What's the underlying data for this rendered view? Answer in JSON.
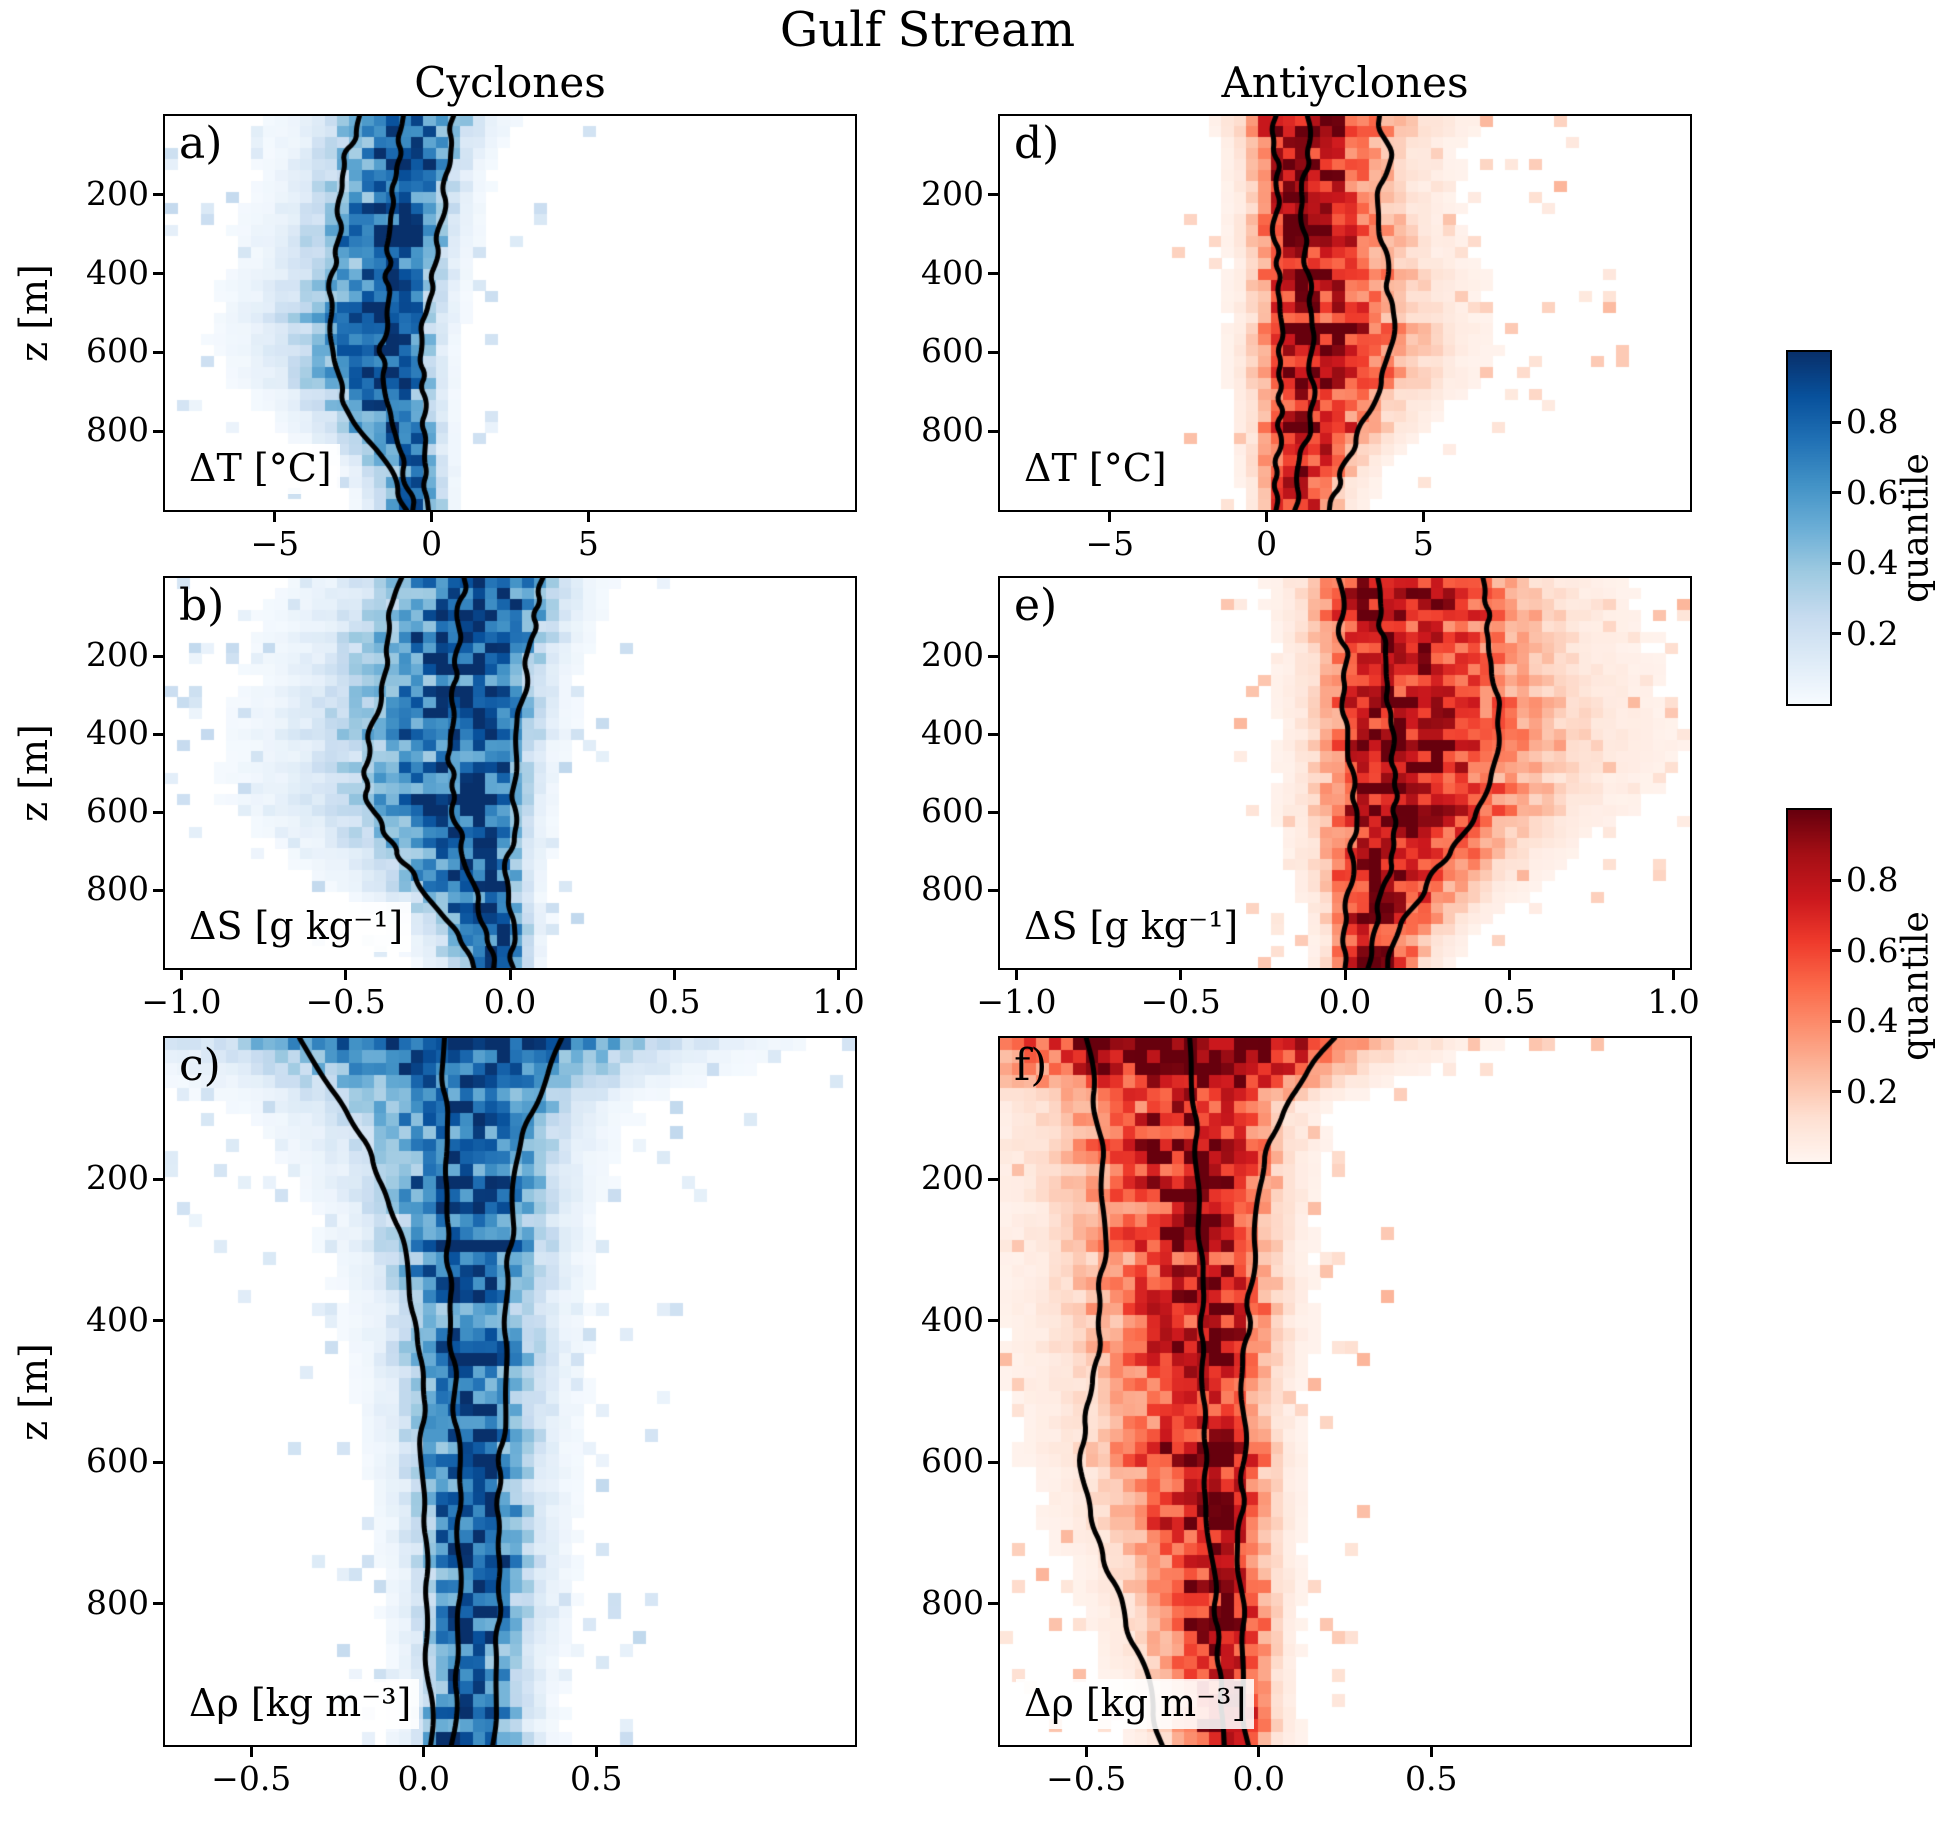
{
  "title": "Gulf Stream",
  "columns": [
    "Cyclones",
    "Antiyclones"
  ],
  "ylabel": "z [m]",
  "colorbars": [
    {
      "label": "quantile",
      "colormap": "blues",
      "ticks": [
        {
          "v": 0.8,
          "label": "0.8"
        },
        {
          "v": 0.6,
          "label": "0.6"
        },
        {
          "v": 0.4,
          "label": "0.4"
        },
        {
          "v": 0.2,
          "label": "0.2"
        }
      ]
    },
    {
      "label": "quantile",
      "colormap": "reds",
      "ticks": [
        {
          "v": 0.8,
          "label": "0.8"
        },
        {
          "v": 0.6,
          "label": "0.6"
        },
        {
          "v": 0.4,
          "label": "0.4"
        },
        {
          "v": 0.2,
          "label": "0.2"
        }
      ]
    }
  ],
  "chart_data": {
    "type": "heatmap",
    "ylim": [
      0,
      1000
    ],
    "yticks": [
      {
        "v": 200,
        "label": "200"
      },
      {
        "v": 400,
        "label": "400"
      },
      {
        "v": 600,
        "label": "600"
      },
      {
        "v": 800,
        "label": "800"
      }
    ],
    "depths": [
      0,
      100,
      200,
      300,
      400,
      500,
      600,
      700,
      800,
      900,
      1000
    ],
    "rows": [
      {
        "var_label": "ΔT [°C]",
        "xlim": [
          -8.5,
          13.5
        ],
        "xticks": [
          {
            "v": -5,
            "label": "−5"
          },
          {
            "v": 0,
            "label": "0"
          },
          {
            "v": 5,
            "label": "5"
          }
        ]
      },
      {
        "var_label": "ΔS [g kg⁻¹]",
        "xlim": [
          -1.05,
          1.05
        ],
        "xticks": [
          {
            "v": -1,
            "label": "−1.0"
          },
          {
            "v": -0.5,
            "label": "−0.5"
          },
          {
            "v": 0,
            "label": "0.0"
          },
          {
            "v": 0.5,
            "label": "0.5"
          },
          {
            "v": 1,
            "label": "1.0"
          }
        ]
      },
      {
        "var_label": "Δρ [kg m⁻³]",
        "xlim": [
          -0.75,
          1.25
        ],
        "xticks": [
          {
            "v": -0.5,
            "label": "−0.5"
          },
          {
            "v": 0,
            "label": "0.0"
          },
          {
            "v": 0.5,
            "label": "0.5"
          }
        ]
      }
    ],
    "panels": [
      {
        "letter": "a)",
        "row": 0,
        "col": 0,
        "colormap": "blues",
        "median": [
          -0.5,
          -0.6,
          -0.7,
          -0.8,
          -0.9,
          -1.0,
          -1.1,
          -1.0,
          -0.8,
          -0.5,
          -0.35
        ],
        "spread_left": [
          1.8,
          1.7,
          1.8,
          1.9,
          2.0,
          2.1,
          2.0,
          1.8,
          1.4,
          1.0,
          0.7
        ],
        "spread_right": [
          1.3,
          0.95,
          0.9,
          0.85,
          0.8,
          0.75,
          0.7,
          0.65,
          0.6,
          0.5,
          0.45
        ],
        "quantile_curves": [
          [
            -2.3,
            -2.7,
            -2.9,
            -3.0,
            -3.1,
            -3.3,
            -3.2,
            -2.9,
            -2.2,
            -1.3,
            -0.8
          ],
          [
            -0.9,
            -1.1,
            -1.2,
            -1.3,
            -1.4,
            -1.5,
            -1.6,
            -1.4,
            -1.1,
            -0.8,
            -0.6
          ],
          [
            0.7,
            0.6,
            0.4,
            0.2,
            0.0,
            -0.2,
            -0.3,
            -0.3,
            -0.3,
            -0.2,
            -0.1
          ]
        ]
      },
      {
        "letter": "d)",
        "row": 0,
        "col": 1,
        "colormap": "reds",
        "median": [
          0.9,
          0.9,
          0.95,
          1.0,
          1.1,
          1.2,
          1.25,
          1.2,
          1.0,
          0.8,
          0.7
        ],
        "spread_left": [
          1.0,
          0.8,
          0.8,
          0.8,
          0.85,
          0.9,
          0.9,
          0.85,
          0.75,
          0.6,
          0.5
        ],
        "spread_right": [
          2.2,
          1.8,
          1.8,
          1.9,
          2.0,
          2.1,
          2.1,
          1.9,
          1.5,
          1.1,
          0.9
        ],
        "quantile_curves": [
          [
            0.3,
            0.3,
            0.3,
            0.3,
            0.35,
            0.4,
            0.45,
            0.45,
            0.4,
            0.35,
            0.3
          ],
          [
            1.3,
            1.25,
            1.2,
            1.25,
            1.3,
            1.4,
            1.5,
            1.45,
            1.3,
            1.1,
            0.9
          ],
          [
            3.6,
            3.9,
            3.5,
            3.6,
            3.8,
            4.0,
            3.9,
            3.6,
            3.0,
            2.4,
            2.0
          ]
        ]
      },
      {
        "letter": "b)",
        "row": 1,
        "col": 0,
        "colormap": "blues",
        "median": [
          -0.05,
          -0.06,
          -0.07,
          -0.08,
          -0.08,
          -0.08,
          -0.08,
          -0.07,
          -0.06,
          -0.04,
          -0.03
        ],
        "spread_left": [
          0.22,
          0.24,
          0.25,
          0.26,
          0.28,
          0.28,
          0.26,
          0.22,
          0.17,
          0.12,
          0.09
        ],
        "spread_right": [
          0.13,
          0.12,
          0.11,
          0.1,
          0.1,
          0.09,
          0.08,
          0.07,
          0.06,
          0.06,
          0.05
        ],
        "quantile_curves": [
          [
            -0.33,
            -0.36,
            -0.38,
            -0.4,
            -0.43,
            -0.45,
            -0.42,
            -0.35,
            -0.26,
            -0.17,
            -0.11
          ],
          [
            -0.14,
            -0.15,
            -0.16,
            -0.17,
            -0.18,
            -0.18,
            -0.17,
            -0.14,
            -0.11,
            -0.08,
            -0.05
          ],
          [
            0.1,
            0.08,
            0.06,
            0.04,
            0.03,
            0.02,
            0.01,
            0.0,
            -0.01,
            0.0,
            0.01
          ]
        ]
      },
      {
        "letter": "e)",
        "row": 1,
        "col": 1,
        "colormap": "reds",
        "median": [
          0.1,
          0.11,
          0.12,
          0.12,
          0.13,
          0.13,
          0.13,
          0.12,
          0.1,
          0.08,
          0.06
        ],
        "spread_left": [
          0.12,
          0.12,
          0.12,
          0.12,
          0.12,
          0.12,
          0.12,
          0.11,
          0.09,
          0.07,
          0.06
        ],
        "spread_right": [
          0.26,
          0.28,
          0.29,
          0.31,
          0.32,
          0.3,
          0.26,
          0.21,
          0.16,
          0.12,
          0.09
        ],
        "quantile_curves": [
          [
            -0.02,
            -0.01,
            0.0,
            0.0,
            0.01,
            0.02,
            0.03,
            0.02,
            0.01,
            0.0,
            0.0
          ],
          [
            0.1,
            0.11,
            0.12,
            0.13,
            0.14,
            0.15,
            0.15,
            0.14,
            0.12,
            0.09,
            0.07
          ],
          [
            0.42,
            0.44,
            0.45,
            0.47,
            0.48,
            0.46,
            0.4,
            0.32,
            0.24,
            0.17,
            0.13
          ]
        ]
      },
      {
        "letter": "c)",
        "row": 2,
        "col": 0,
        "colormap": "blues",
        "median": [
          0.15,
          0.15,
          0.14,
          0.14,
          0.14,
          0.14,
          0.14,
          0.14,
          0.14,
          0.13,
          0.12
        ],
        "spread_left": [
          0.45,
          0.25,
          0.18,
          0.15,
          0.13,
          0.12,
          0.11,
          0.1,
          0.09,
          0.08,
          0.08
        ],
        "spread_right": [
          0.35,
          0.17,
          0.14,
          0.13,
          0.12,
          0.12,
          0.11,
          0.11,
          0.11,
          0.1,
          0.1
        ],
        "quantile_curves": [
          [
            -0.36,
            -0.22,
            -0.12,
            -0.06,
            -0.02,
            0.0,
            0.0,
            0.0,
            0.01,
            0.01,
            0.02
          ],
          [
            0.06,
            0.06,
            0.07,
            0.07,
            0.08,
            0.09,
            0.1,
            0.1,
            0.1,
            0.09,
            0.08
          ],
          [
            0.4,
            0.31,
            0.27,
            0.25,
            0.24,
            0.23,
            0.22,
            0.22,
            0.22,
            0.21,
            0.2
          ]
        ]
      },
      {
        "letter": "f)",
        "row": 2,
        "col": 1,
        "colormap": "reds",
        "median": [
          -0.15,
          -0.14,
          -0.13,
          -0.13,
          -0.12,
          -0.12,
          -0.11,
          -0.1,
          -0.09,
          -0.08,
          -0.07
        ],
        "spread_left": [
          0.45,
          0.26,
          0.24,
          0.23,
          0.22,
          0.22,
          0.2,
          0.18,
          0.15,
          0.13,
          0.11
        ],
        "spread_right": [
          0.3,
          0.12,
          0.11,
          0.1,
          0.1,
          0.09,
          0.09,
          0.08,
          0.08,
          0.07,
          0.07
        ],
        "quantile_curves": [
          [
            -0.5,
            -0.47,
            -0.45,
            -0.45,
            -0.46,
            -0.48,
            -0.52,
            -0.47,
            -0.4,
            -0.33,
            -0.28
          ],
          [
            -0.2,
            -0.19,
            -0.18,
            -0.17,
            -0.17,
            -0.16,
            -0.15,
            -0.14,
            -0.13,
            -0.11,
            -0.1
          ],
          [
            0.22,
            0.06,
            0.0,
            -0.02,
            -0.03,
            -0.04,
            -0.05,
            -0.05,
            -0.05,
            -0.04,
            -0.03
          ]
        ]
      }
    ]
  }
}
